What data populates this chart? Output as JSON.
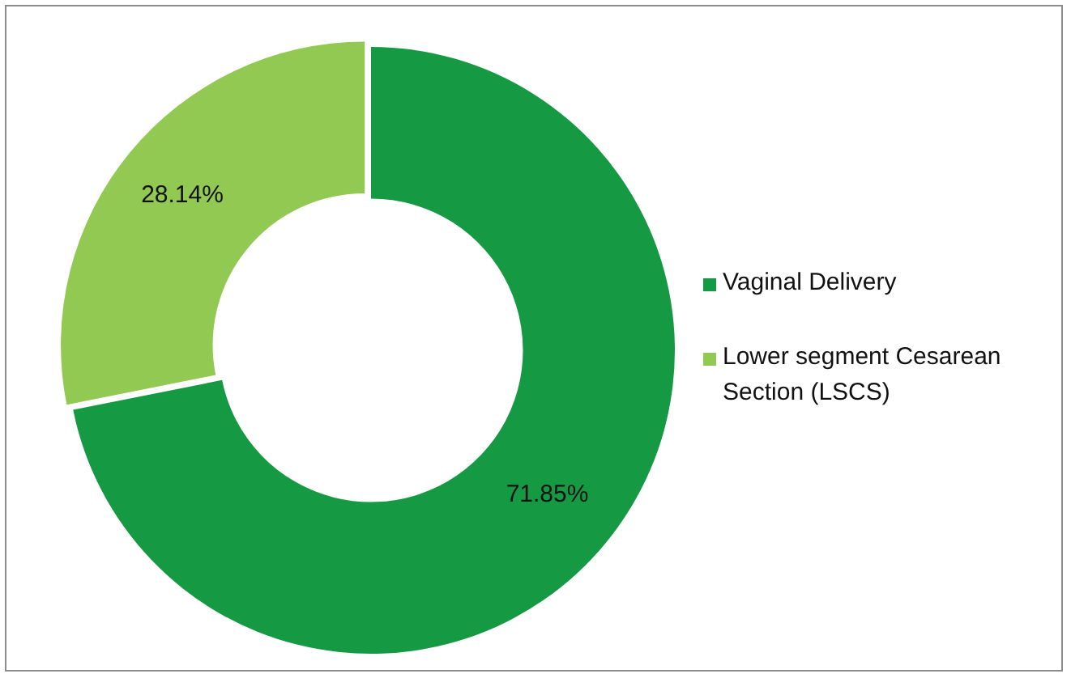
{
  "chart_data": {
    "type": "donut",
    "categories": [
      "Vaginal Delivery",
      "Lower segment Cesarean Section (LSCS)"
    ],
    "values": [
      71.85,
      28.14
    ],
    "colors": [
      "#169943",
      "#92c952"
    ],
    "value_labels": [
      "71.85%",
      "28.14%"
    ],
    "legend": "right"
  }
}
